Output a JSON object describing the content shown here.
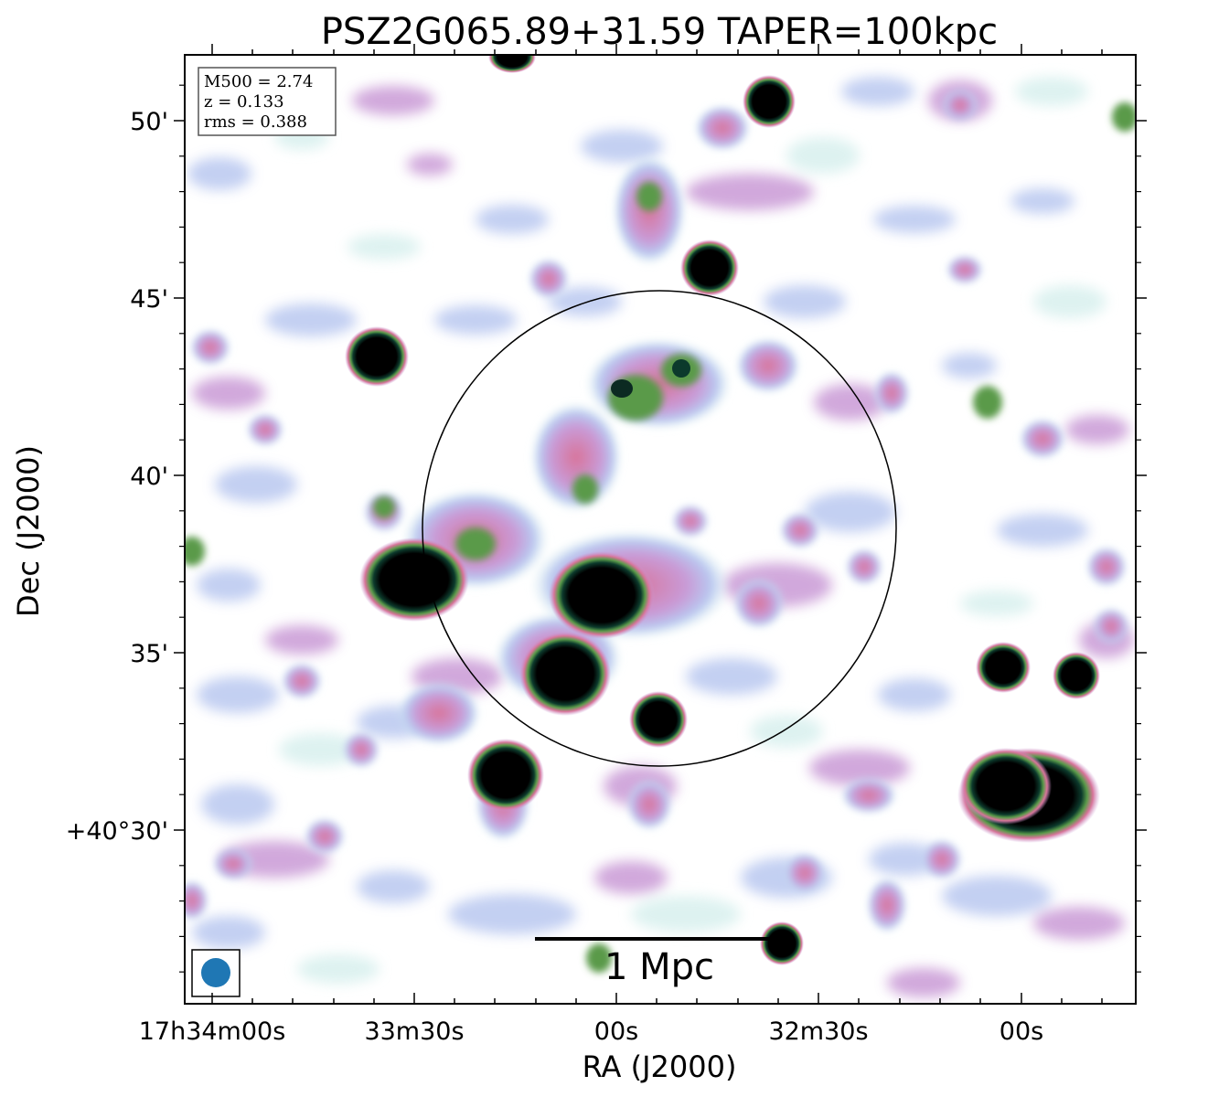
{
  "title": "PSZ2G065.89+31.59 TAPER=100kpc",
  "x_axis_label": "RA (J2000)",
  "y_axis_label": "Dec (J2000)",
  "x_ticks": [
    "17h34m00s",
    "33m30s",
    "00s",
    "32m30s",
    "00s"
  ],
  "y_ticks": [
    "50'",
    "45'",
    "40'",
    "35'",
    "+40°30'"
  ],
  "info_box": {
    "mass": "M500 = 2.74",
    "redshift": "z = 0.133",
    "rms": "rms = 0.388"
  },
  "scale_bar": {
    "label": "1 Mpc"
  },
  "colormap": [
    "#d8f0ee",
    "#b9c8f0",
    "#c99ad6",
    "#d8749a",
    "#5a9a4a",
    "#0c3a2c",
    "#000000"
  ]
}
